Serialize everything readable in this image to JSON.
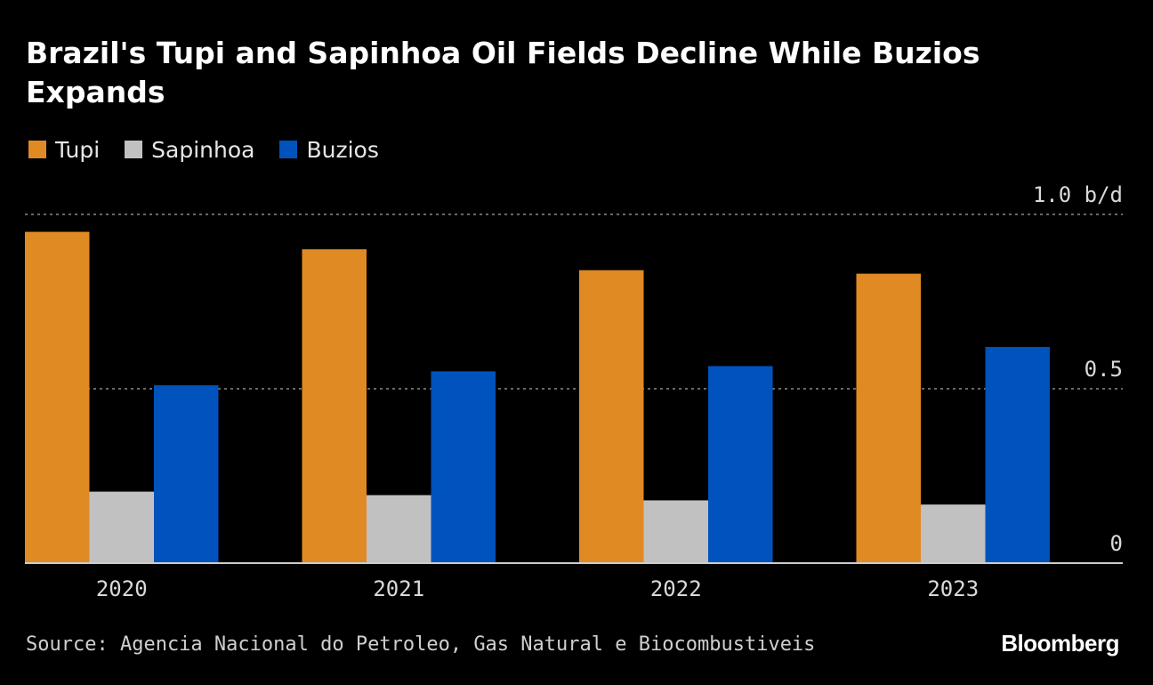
{
  "chart_data": {
    "type": "bar",
    "title": "Brazil's Tupi and Sapinhoa Oil Fields Decline While Buzios Expands",
    "categories": [
      "2020",
      "2021",
      "2022",
      "2023"
    ],
    "series": [
      {
        "name": "Tupi",
        "color": "#e08a24",
        "values": [
          0.95,
          0.9,
          0.84,
          0.83
        ]
      },
      {
        "name": "Sapinhoa",
        "color": "#c1c1c1",
        "values": [
          0.205,
          0.195,
          0.18,
          0.168
        ]
      },
      {
        "name": "Buzios",
        "color": "#0052bd",
        "values": [
          0.51,
          0.55,
          0.565,
          0.62
        ]
      }
    ],
    "yticks": [
      {
        "value": 0,
        "label": "0"
      },
      {
        "value": 0.5,
        "label": "0.5"
      },
      {
        "value": 1.0,
        "label": "1.0 b/d"
      }
    ],
    "ylim": [
      0,
      1.0
    ],
    "xlabel": "",
    "ylabel": "b/d",
    "gridlines": true,
    "legend": "top-left"
  },
  "source": "Source: Agencia Nacional do Petroleo, Gas Natural e Biocombustiveis",
  "brand": "Bloomberg",
  "colors": {
    "background": "#000000",
    "text": "#ffffff",
    "grid": "#8a8a8a",
    "axis": "#cccccc"
  }
}
